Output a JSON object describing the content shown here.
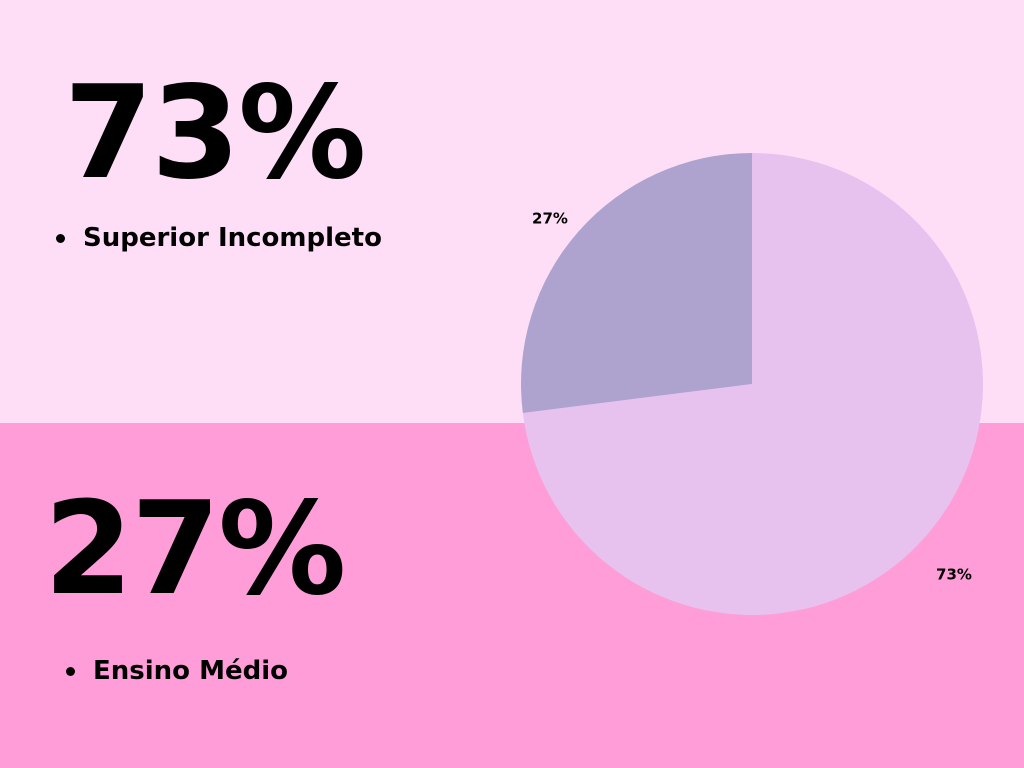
{
  "colors": {
    "top_band": "#FEDEF6",
    "bottom_band": "#FF9DD8",
    "slice_major": "#E8C2EF",
    "slice_minor": "#AEA2CE"
  },
  "stats": [
    {
      "value": "73%",
      "label": "Superior Incompleto"
    },
    {
      "value": "27%",
      "label": "Ensino Médio"
    }
  ],
  "chart_data": {
    "type": "pie",
    "slices": [
      {
        "value": 73,
        "label": "73%"
      },
      {
        "value": 27,
        "label": "27%"
      }
    ]
  }
}
